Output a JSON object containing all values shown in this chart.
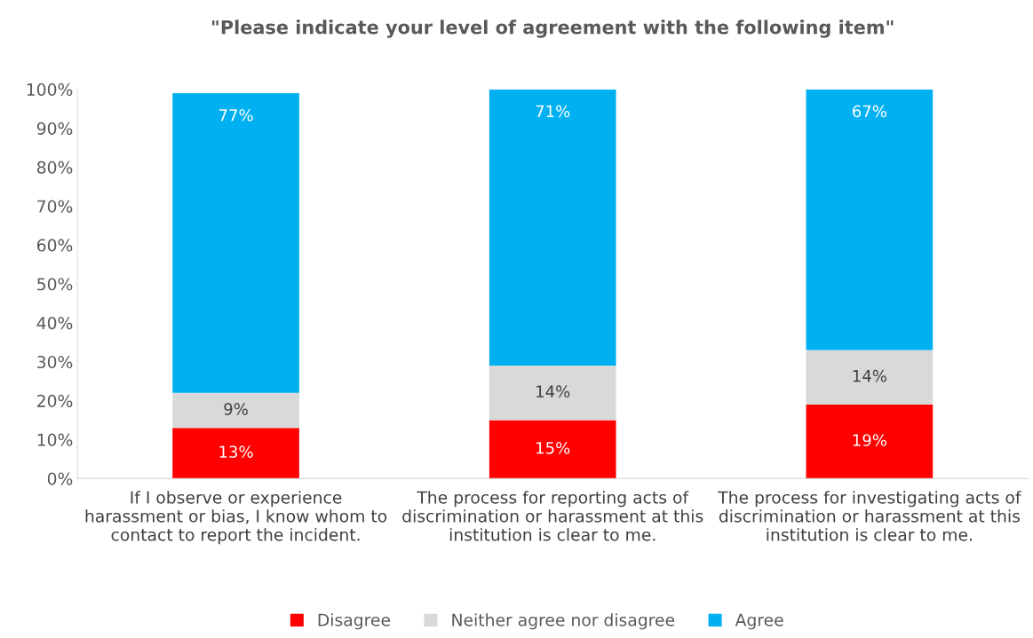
{
  "chart_data": {
    "type": "bar",
    "stacked": true,
    "title": "\"Please indicate your level of agreement with the following item\"",
    "categories": [
      "If I observe or experience\nharassment or bias, I know whom to\ncontact to report the incident.",
      "The process for reporting acts of\ndiscrimination or harassment at this\ninstitution is clear to me.",
      "The process for investigating acts of\ndiscrimination or harassment at this\ninstitution is clear to me."
    ],
    "series": [
      {
        "name": "Disagree",
        "color": "#ff0000",
        "values": [
          13,
          15,
          19
        ],
        "value_labels": [
          "13%",
          "15%",
          "19%"
        ]
      },
      {
        "name": "Neither agree nor disagree",
        "color": "#d9d9d9",
        "values": [
          9,
          14,
          14
        ],
        "value_labels": [
          "9%",
          "14%",
          "14%"
        ]
      },
      {
        "name": "Agree",
        "color": "#00b0f0",
        "values": [
          77,
          71,
          67
        ],
        "value_labels": [
          "77%",
          "71%",
          "67%"
        ]
      }
    ],
    "ylim": [
      0,
      100
    ],
    "yticks": [
      {
        "value": 0,
        "label": "0%"
      },
      {
        "value": 10,
        "label": "10%"
      },
      {
        "value": 20,
        "label": "20%"
      },
      {
        "value": 30,
        "label": "30%"
      },
      {
        "value": 40,
        "label": "40%"
      },
      {
        "value": 50,
        "label": "50%"
      },
      {
        "value": 60,
        "label": "60%"
      },
      {
        "value": 70,
        "label": "70%"
      },
      {
        "value": 80,
        "label": "80%"
      },
      {
        "value": 90,
        "label": "90%"
      },
      {
        "value": 100,
        "label": "100%"
      }
    ],
    "grid": false,
    "legend": "bottom"
  }
}
